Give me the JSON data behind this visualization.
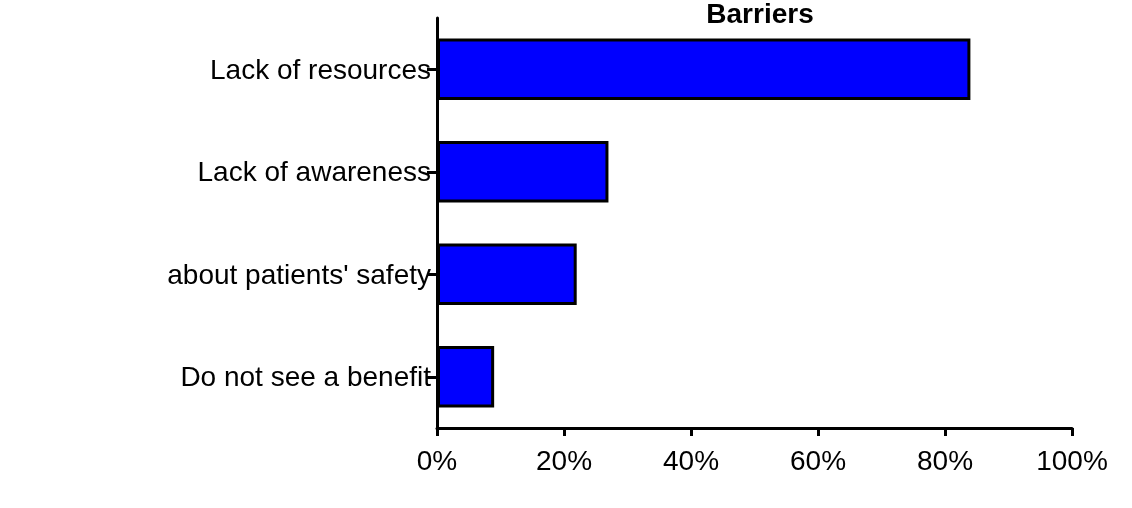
{
  "chart_data": {
    "type": "bar",
    "orientation": "horizontal",
    "title": "Barriers",
    "categories": [
      "Lack of resources",
      "Lack of awareness",
      "about patients' safety",
      "Do not see a benefit"
    ],
    "values": [
      84,
      27,
      22,
      9
    ],
    "color": "#0000ff",
    "xlim": [
      0,
      100
    ],
    "xticks": [
      {
        "value": 0,
        "label": "0%"
      },
      {
        "value": 20,
        "label": "20%"
      },
      {
        "value": 40,
        "label": "40%"
      },
      {
        "value": 60,
        "label": "60%"
      },
      {
        "value": 80,
        "label": "80%"
      },
      {
        "value": 100,
        "label": "100%"
      }
    ],
    "grid": false
  }
}
